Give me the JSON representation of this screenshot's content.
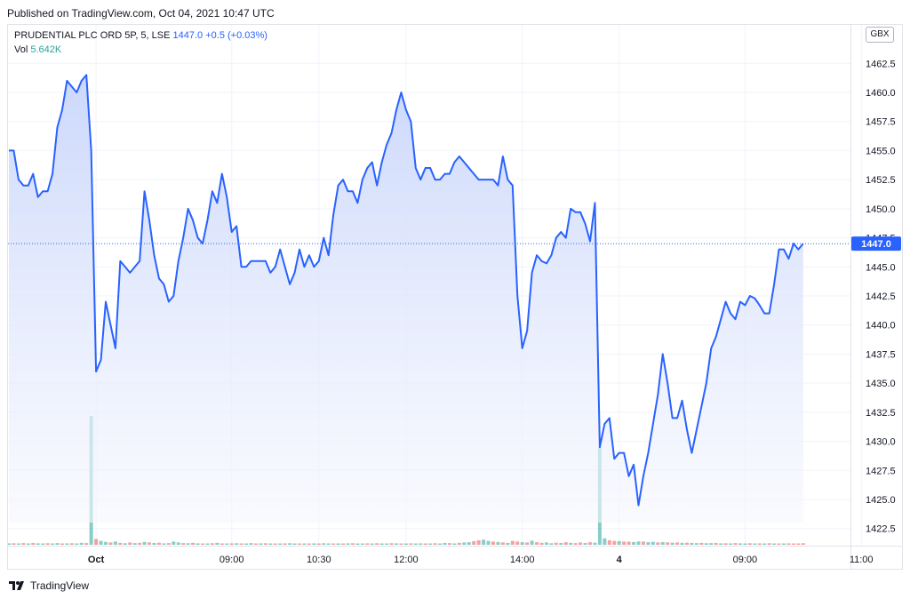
{
  "published": "Published on TradingView.com, Oct 04, 2021 10:47 UTC",
  "legend": {
    "symbol": "PRUDENTIAL PLC ORD 5P, 5, LSE",
    "last": "1447.0",
    "change": "+0.5 (+0.03%)",
    "vol_label": "Vol",
    "vol_value": "5.642K"
  },
  "currency": "GBX",
  "price_label": "1447.0",
  "footer": {
    "brand": "TradingView"
  },
  "colors": {
    "line": "#2962ff",
    "area_top": "#c9d6fb",
    "area_bottom": "#f5f7fe",
    "vol_up": "#26a69a",
    "vol_down": "#ef5350",
    "grid": "#f0f3fa",
    "price_badge": "#2962ff"
  },
  "chart_data": {
    "type": "area",
    "symbol": "PRUDENTIAL PLC ORD 5P",
    "interval": "5",
    "exchange": "LSE",
    "ylim": [
      1420,
      1464
    ],
    "y_ticks": [
      "1422.5",
      "1425.0",
      "1427.5",
      "1430.0",
      "1432.5",
      "1435.0",
      "1437.5",
      "1440.0",
      "1442.5",
      "1445.0",
      "1447.5",
      "1450.0",
      "1452.5",
      "1455.0",
      "1457.5",
      "1460.0",
      "1462.5"
    ],
    "x_ticks": [
      {
        "label": "Oct",
        "bar": 18,
        "bold": true
      },
      {
        "label": "09:00",
        "bar": 46,
        "bold": false
      },
      {
        "label": "10:30",
        "bar": 64,
        "bold": false
      },
      {
        "label": "12:00",
        "bar": 82,
        "bold": false
      },
      {
        "label": "14:00",
        "bar": 106,
        "bold": false
      },
      {
        "label": "4",
        "bar": 126,
        "bold": true
      },
      {
        "label": "09:00",
        "bar": 152,
        "bold": false
      },
      {
        "label": "11:00",
        "bar": 176,
        "bold": false
      }
    ],
    "close": [
      1455,
      1455,
      1452.5,
      1452,
      1452,
      1453,
      1451,
      1451.5,
      1451.5,
      1453,
      1457,
      1458.5,
      1461,
      1460.5,
      1460,
      1461,
      1461.5,
      1455,
      1436,
      1437,
      1442,
      1440,
      1438,
      1445.5,
      1445,
      1444.5,
      1445,
      1445.5,
      1451.5,
      1449,
      1446,
      1444,
      1443.5,
      1442,
      1442.5,
      1445.5,
      1447.5,
      1450,
      1449,
      1447.5,
      1447,
      1449,
      1451.5,
      1450.5,
      1453,
      1451,
      1448,
      1448.5,
      1445,
      1445,
      1445.5,
      1445.5,
      1445.5,
      1445.5,
      1444.5,
      1445,
      1446.5,
      1445,
      1443.5,
      1444.5,
      1446.5,
      1445,
      1446,
      1445,
      1445.5,
      1447.5,
      1446,
      1449.5,
      1452,
      1452.5,
      1451.5,
      1451.5,
      1450.5,
      1452.5,
      1453.5,
      1454,
      1452,
      1454,
      1455.5,
      1456.5,
      1458.5,
      1460,
      1458.5,
      1457.5,
      1453.5,
      1452.5,
      1453.5,
      1453.5,
      1452.5,
      1452.5,
      1453,
      1453,
      1454,
      1454.5,
      1454,
      1453.5,
      1453,
      1452.5,
      1452.5,
      1452.5,
      1452.5,
      1452,
      1454.5,
      1452.5,
      1452,
      1442.5,
      1438,
      1439.5,
      1444.5,
      1446,
      1445.5,
      1445.3,
      1446,
      1447.5,
      1448,
      1447.5,
      1450,
      1449.7,
      1449.7,
      1448.7,
      1447.2,
      1450.5,
      1429.5,
      1431.5,
      1432,
      1428.5,
      1429,
      1429,
      1427,
      1428,
      1424.5,
      1427,
      1429,
      1431.5,
      1434,
      1437.5,
      1435,
      1432,
      1432,
      1433.5,
      1431,
      1429,
      1431,
      1433,
      1435,
      1438,
      1439,
      1440.5,
      1442,
      1441,
      1440.5,
      1442,
      1441.7,
      1442.5,
      1442.3,
      1441.7,
      1441,
      1441,
      1443.5,
      1446.5,
      1446.5,
      1445.7,
      1447,
      1446.5,
      1447
    ],
    "volume": [
      1.1,
      1.2,
      0.9,
      1.3,
      1.0,
      1.4,
      1.1,
      0.8,
      1.2,
      1.0,
      1.3,
      0.9,
      1.1,
      1.2,
      0.8,
      1.5,
      1.3,
      100,
      4.5,
      3.0,
      2.2,
      1.8,
      2.5,
      1.5,
      1.2,
      1.8,
      1.3,
      1.5,
      2.2,
      1.8,
      1.4,
      1.6,
      1.1,
      1.3,
      2.5,
      1.8,
      1.3,
      1.2,
      1.5,
      1.1,
      1.0,
      0.9,
      1.2,
      1.5,
      1.0,
      0.8,
      1.1,
      1.2,
      0.9,
      1.0,
      1.3,
      0.8,
      1.1,
      1.2,
      0.9,
      1.0,
      0.8,
      1.1,
      1.2,
      0.9,
      1.0,
      0.8,
      1.0,
      1.1,
      0.9,
      1.2,
      1.0,
      0.9,
      0.8,
      1.0,
      1.1,
      1.2,
      1.0,
      0.9,
      1.1,
      1.0,
      1.2,
      0.9,
      1.0,
      1.2,
      1.1,
      1.0,
      0.9,
      1.1,
      1.0,
      1.1,
      0.9,
      1.0,
      1.2,
      1.0,
      1.4,
      1.3,
      1.0,
      1.5,
      1.8,
      2.0,
      2.8,
      3.5,
      4.0,
      3.0,
      2.5,
      2.2,
      1.8,
      1.5,
      3.0,
      2.5,
      2.0,
      1.8,
      3.2,
      2.0,
      1.5,
      1.8,
      1.2,
      1.6,
      1.4,
      2.0,
      1.5,
      1.3,
      1.8,
      1.4,
      2.0,
      1.6,
      76,
      5.0,
      3.5,
      3.0,
      2.8,
      2.5,
      2.4,
      2.2,
      2.6,
      2.5,
      2.0,
      2.3,
      1.8,
      2.1,
      1.9,
      1.6,
      1.8,
      1.5,
      1.6,
      1.4,
      1.3,
      1.5,
      1.2,
      1.3,
      1.4,
      1.1,
      1.2,
      1.0,
      1.3,
      1.1,
      1.0,
      1.2,
      0.9,
      1.1,
      1.0,
      1.2,
      0.8,
      1.0,
      0.9,
      1.1,
      1.0,
      0.9,
      1.2
    ],
    "volume_up": [
      true,
      false,
      true,
      false,
      true,
      false,
      true,
      true,
      false,
      true,
      true,
      false,
      true,
      false,
      true,
      true,
      false,
      true,
      false,
      true,
      true,
      false,
      true,
      false,
      true,
      false,
      true,
      false,
      true,
      false,
      true,
      false,
      true,
      false,
      true,
      true,
      false,
      true,
      false,
      true,
      false,
      true,
      false,
      true,
      false,
      true,
      false,
      true,
      false,
      true,
      true,
      false,
      true,
      false,
      true,
      false,
      true,
      false,
      true,
      true,
      false,
      true,
      false,
      true,
      false,
      true,
      true,
      false,
      true,
      false,
      true,
      false,
      true,
      true,
      false,
      true,
      false,
      true,
      true,
      false,
      true,
      false,
      true,
      false,
      true,
      true,
      false,
      true,
      false,
      true,
      true,
      false,
      true,
      false,
      true,
      true,
      false,
      false,
      true,
      true,
      false,
      true,
      false,
      true,
      false,
      false,
      true,
      false,
      true,
      false,
      false,
      true,
      true,
      false,
      true,
      false,
      true,
      false,
      false,
      true,
      false,
      true,
      true,
      true,
      false,
      false,
      true,
      false,
      false,
      true,
      true,
      false,
      true,
      true,
      false,
      true,
      false,
      true,
      false,
      true,
      false,
      true,
      true,
      false,
      true,
      true,
      false,
      true,
      false,
      true,
      false,
      true,
      true,
      false,
      true,
      false,
      true,
      false,
      true,
      false,
      true
    ],
    "last_price": 1447.0
  }
}
